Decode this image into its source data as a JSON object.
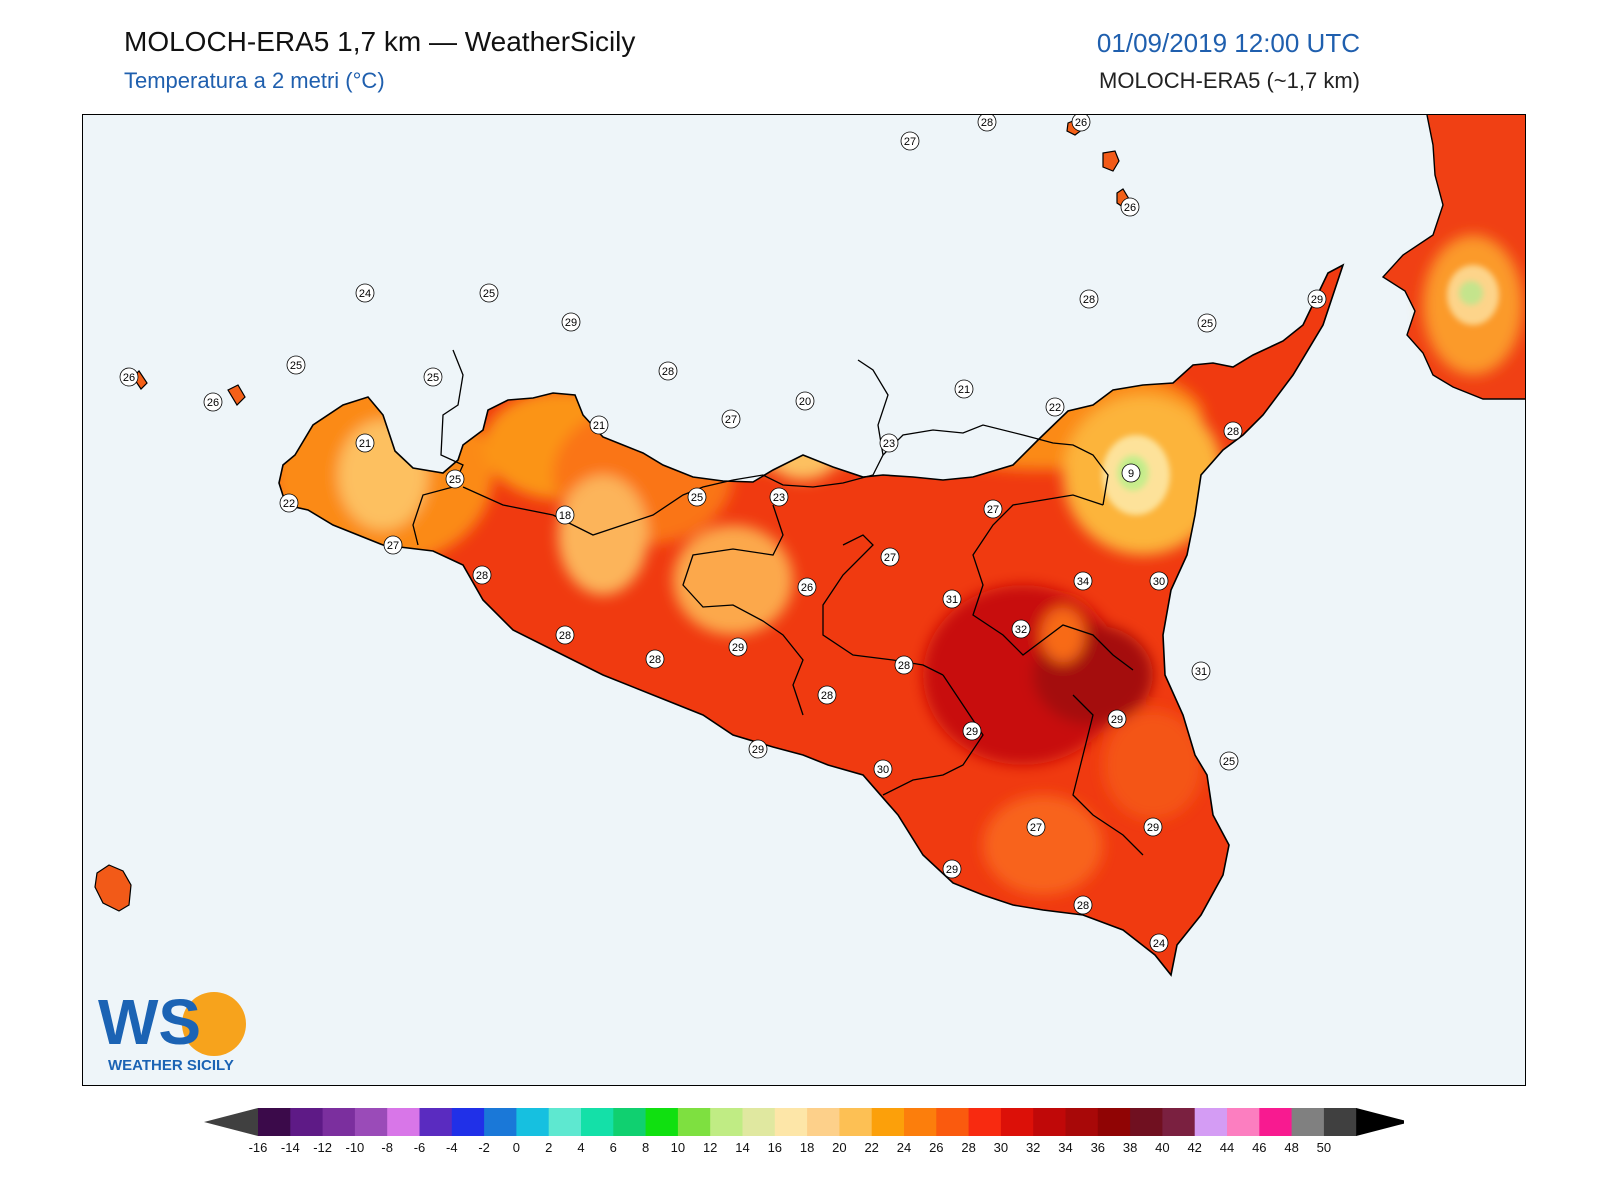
{
  "header": {
    "title": "MOLOCH-ERA5 1,7 km — WeatherSicily",
    "subtitle": "Temperatura a 2 metri (°C)",
    "datetime": "01/09/2019 12:00 UTC",
    "model": "MOLOCH-ERA5 (~1,7 km)"
  },
  "logo": {
    "letters": "WS",
    "name": "WEATHER SICILY"
  },
  "map": {
    "sea_color": "#eef5f9",
    "station_values": [
      {
        "name": "s01",
        "value": "28"
      },
      {
        "name": "s02",
        "value": "26"
      },
      {
        "name": "s03",
        "value": "27"
      },
      {
        "name": "s04",
        "value": "26"
      },
      {
        "name": "s05",
        "value": "24"
      },
      {
        "name": "s06",
        "value": "25"
      },
      {
        "name": "s07",
        "value": "29"
      },
      {
        "name": "s08",
        "value": "28"
      },
      {
        "name": "s09",
        "value": "29"
      },
      {
        "name": "s10",
        "value": "25"
      },
      {
        "name": "s11",
        "value": "26"
      },
      {
        "name": "s12",
        "value": "25"
      },
      {
        "name": "s13",
        "value": "25"
      },
      {
        "name": "s14",
        "value": "28"
      },
      {
        "name": "s15",
        "value": "20"
      },
      {
        "name": "s16",
        "value": "21"
      },
      {
        "name": "s17",
        "value": "22"
      },
      {
        "name": "s18",
        "value": "28"
      },
      {
        "name": "s19",
        "value": "26"
      },
      {
        "name": "s20",
        "value": "21"
      },
      {
        "name": "s21",
        "value": "27"
      },
      {
        "name": "s22",
        "value": "23"
      },
      {
        "name": "s23",
        "value": "21"
      },
      {
        "name": "s24",
        "value": "9"
      },
      {
        "name": "s25",
        "value": "25"
      },
      {
        "name": "s26",
        "value": "25"
      },
      {
        "name": "s27",
        "value": "23"
      },
      {
        "name": "s28",
        "value": "22"
      },
      {
        "name": "s29",
        "value": "18"
      },
      {
        "name": "s30",
        "value": "27"
      },
      {
        "name": "s31",
        "value": "27"
      },
      {
        "name": "s32",
        "value": "27"
      },
      {
        "name": "s33",
        "value": "34"
      },
      {
        "name": "s34",
        "value": "30"
      },
      {
        "name": "s35",
        "value": "28"
      },
      {
        "name": "s36",
        "value": "26"
      },
      {
        "name": "s37",
        "value": "31"
      },
      {
        "name": "s38",
        "value": "32"
      },
      {
        "name": "s39",
        "value": "28"
      },
      {
        "name": "s40",
        "value": "29"
      },
      {
        "name": "s41",
        "value": "28"
      },
      {
        "name": "s42",
        "value": "28"
      },
      {
        "name": "s43",
        "value": "31"
      },
      {
        "name": "s44",
        "value": "28"
      },
      {
        "name": "s45",
        "value": "29"
      },
      {
        "name": "s46",
        "value": "29"
      },
      {
        "name": "s47",
        "value": "29"
      },
      {
        "name": "s48",
        "value": "30"
      },
      {
        "name": "s49",
        "value": "25"
      },
      {
        "name": "s50",
        "value": "27"
      },
      {
        "name": "s51",
        "value": "29"
      },
      {
        "name": "s52",
        "value": "29"
      },
      {
        "name": "s53",
        "value": "28"
      },
      {
        "name": "s54",
        "value": "24"
      }
    ]
  },
  "colorbar": {
    "labels": [
      "-16",
      "-14",
      "-12",
      "-10",
      "-8",
      "-6",
      "-4",
      "-2",
      "0",
      "2",
      "4",
      "6",
      "8",
      "10",
      "12",
      "14",
      "16",
      "18",
      "20",
      "22",
      "24",
      "26",
      "28",
      "30",
      "32",
      "34",
      "36",
      "38",
      "40",
      "42",
      "44",
      "46",
      "48",
      "50"
    ],
    "colors": [
      "#3b0a4a",
      "#5e1a86",
      "#7b2f9e",
      "#9a4bb8",
      "#d876e8",
      "#5a2bc0",
      "#2030e8",
      "#1a78d8",
      "#16c0e0",
      "#5ee8d0",
      "#14e0a8",
      "#10d070",
      "#10e010",
      "#7ee040",
      "#c0ec84",
      "#e0e8a0",
      "#fde6a8",
      "#fdd08a",
      "#fdc054",
      "#fca00a",
      "#fc7e0c",
      "#fa5a0e",
      "#f82a10",
      "#dc1008",
      "#c00808",
      "#a80808",
      "#900404",
      "#701020",
      "#7a2040",
      "#d49cf4",
      "#fc7ec0",
      "#f81a90",
      "#808080",
      "#404040"
    ]
  }
}
